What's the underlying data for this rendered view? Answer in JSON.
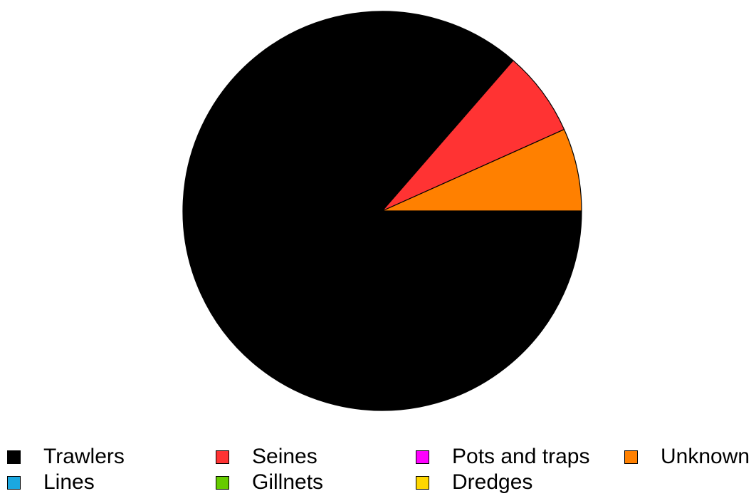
{
  "chart_data": {
    "type": "pie",
    "slices": [
      {
        "label": "Trawlers",
        "value": 86.4,
        "color": "#000000"
      },
      {
        "label": "Seines",
        "value": 6.9,
        "color": "#FF3333"
      },
      {
        "label": "Unknown",
        "value": 6.7,
        "color": "#FF8000"
      },
      {
        "label": "Lines",
        "value": 0,
        "color": "#1BA8E0"
      },
      {
        "label": "Gillnets",
        "value": 0,
        "color": "#66CC00"
      },
      {
        "label": "Pots and traps",
        "value": 0,
        "color": "#FF00FF"
      },
      {
        "label": "Dredges",
        "value": 0,
        "color": "#FFD700"
      }
    ],
    "start_angle_deg": 0,
    "direction": "clockwise",
    "legend_position": "bottom",
    "legend": [
      {
        "label": "Trawlers",
        "color": "#000000"
      },
      {
        "label": "Seines",
        "color": "#FF3333"
      },
      {
        "label": "Pots and traps",
        "color": "#FF00FF"
      },
      {
        "label": "Unknown",
        "color": "#FF8000"
      },
      {
        "label": "Lines",
        "color": "#1BA8E0"
      },
      {
        "label": "Gillnets",
        "color": "#66CC00"
      },
      {
        "label": "Dredges",
        "color": "#FFD700"
      }
    ]
  }
}
